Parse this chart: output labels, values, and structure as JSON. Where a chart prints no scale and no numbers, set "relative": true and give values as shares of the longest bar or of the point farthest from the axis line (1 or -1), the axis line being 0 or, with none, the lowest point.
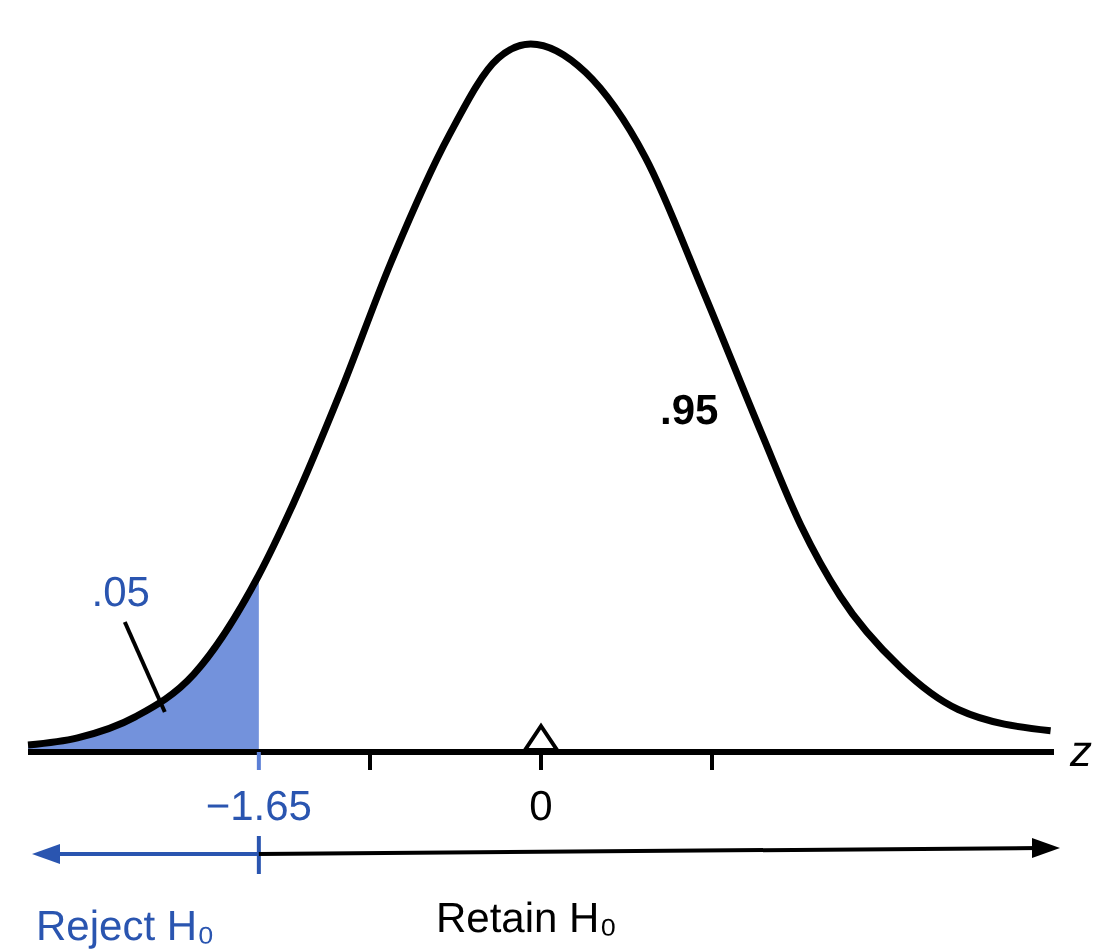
{
  "chart_data": {
    "type": "line",
    "relative": true,
    "xlabel": "z",
    "xlim": [
      -3,
      3
    ],
    "xticks": [
      {
        "value": -1.65,
        "label": "−1.65"
      },
      {
        "value": -1,
        "label": null
      },
      0,
      {
        "value": 1,
        "label": null
      }
    ],
    "series": [
      {
        "color": "#000000",
        "x": [
          -3,
          -2.71,
          -2.37,
          -2.03,
          -1.65,
          -1.45,
          -1.17,
          -0.88,
          -0.54,
          -0.25,
          -0.06,
          0.26,
          0.61,
          0.95,
          1.29,
          1.52,
          1.75,
          2.1,
          2.44,
          2.98
        ],
        "values": [
          0.01,
          0.02,
          0.05,
          0.11,
          0.25,
          0.35,
          0.51,
          0.69,
          0.87,
          0.98,
          1,
          0.96,
          0.84,
          0.65,
          0.45,
          0.32,
          0.22,
          0.12,
          0.06,
          0.03
        ]
      },
      {
        "type": "area",
        "color": "#5b7fd6",
        "x": [
          -3,
          -2.71,
          -2.37,
          -2.03,
          -1.65
        ],
        "values": [
          0.01,
          0.02,
          0.05,
          0.11,
          0.25
        ]
      }
    ],
    "annotations": [
      ".05",
      ".95",
      "Reject H₀",
      "Retain H₀"
    ],
    "line_style": "solid"
  }
}
